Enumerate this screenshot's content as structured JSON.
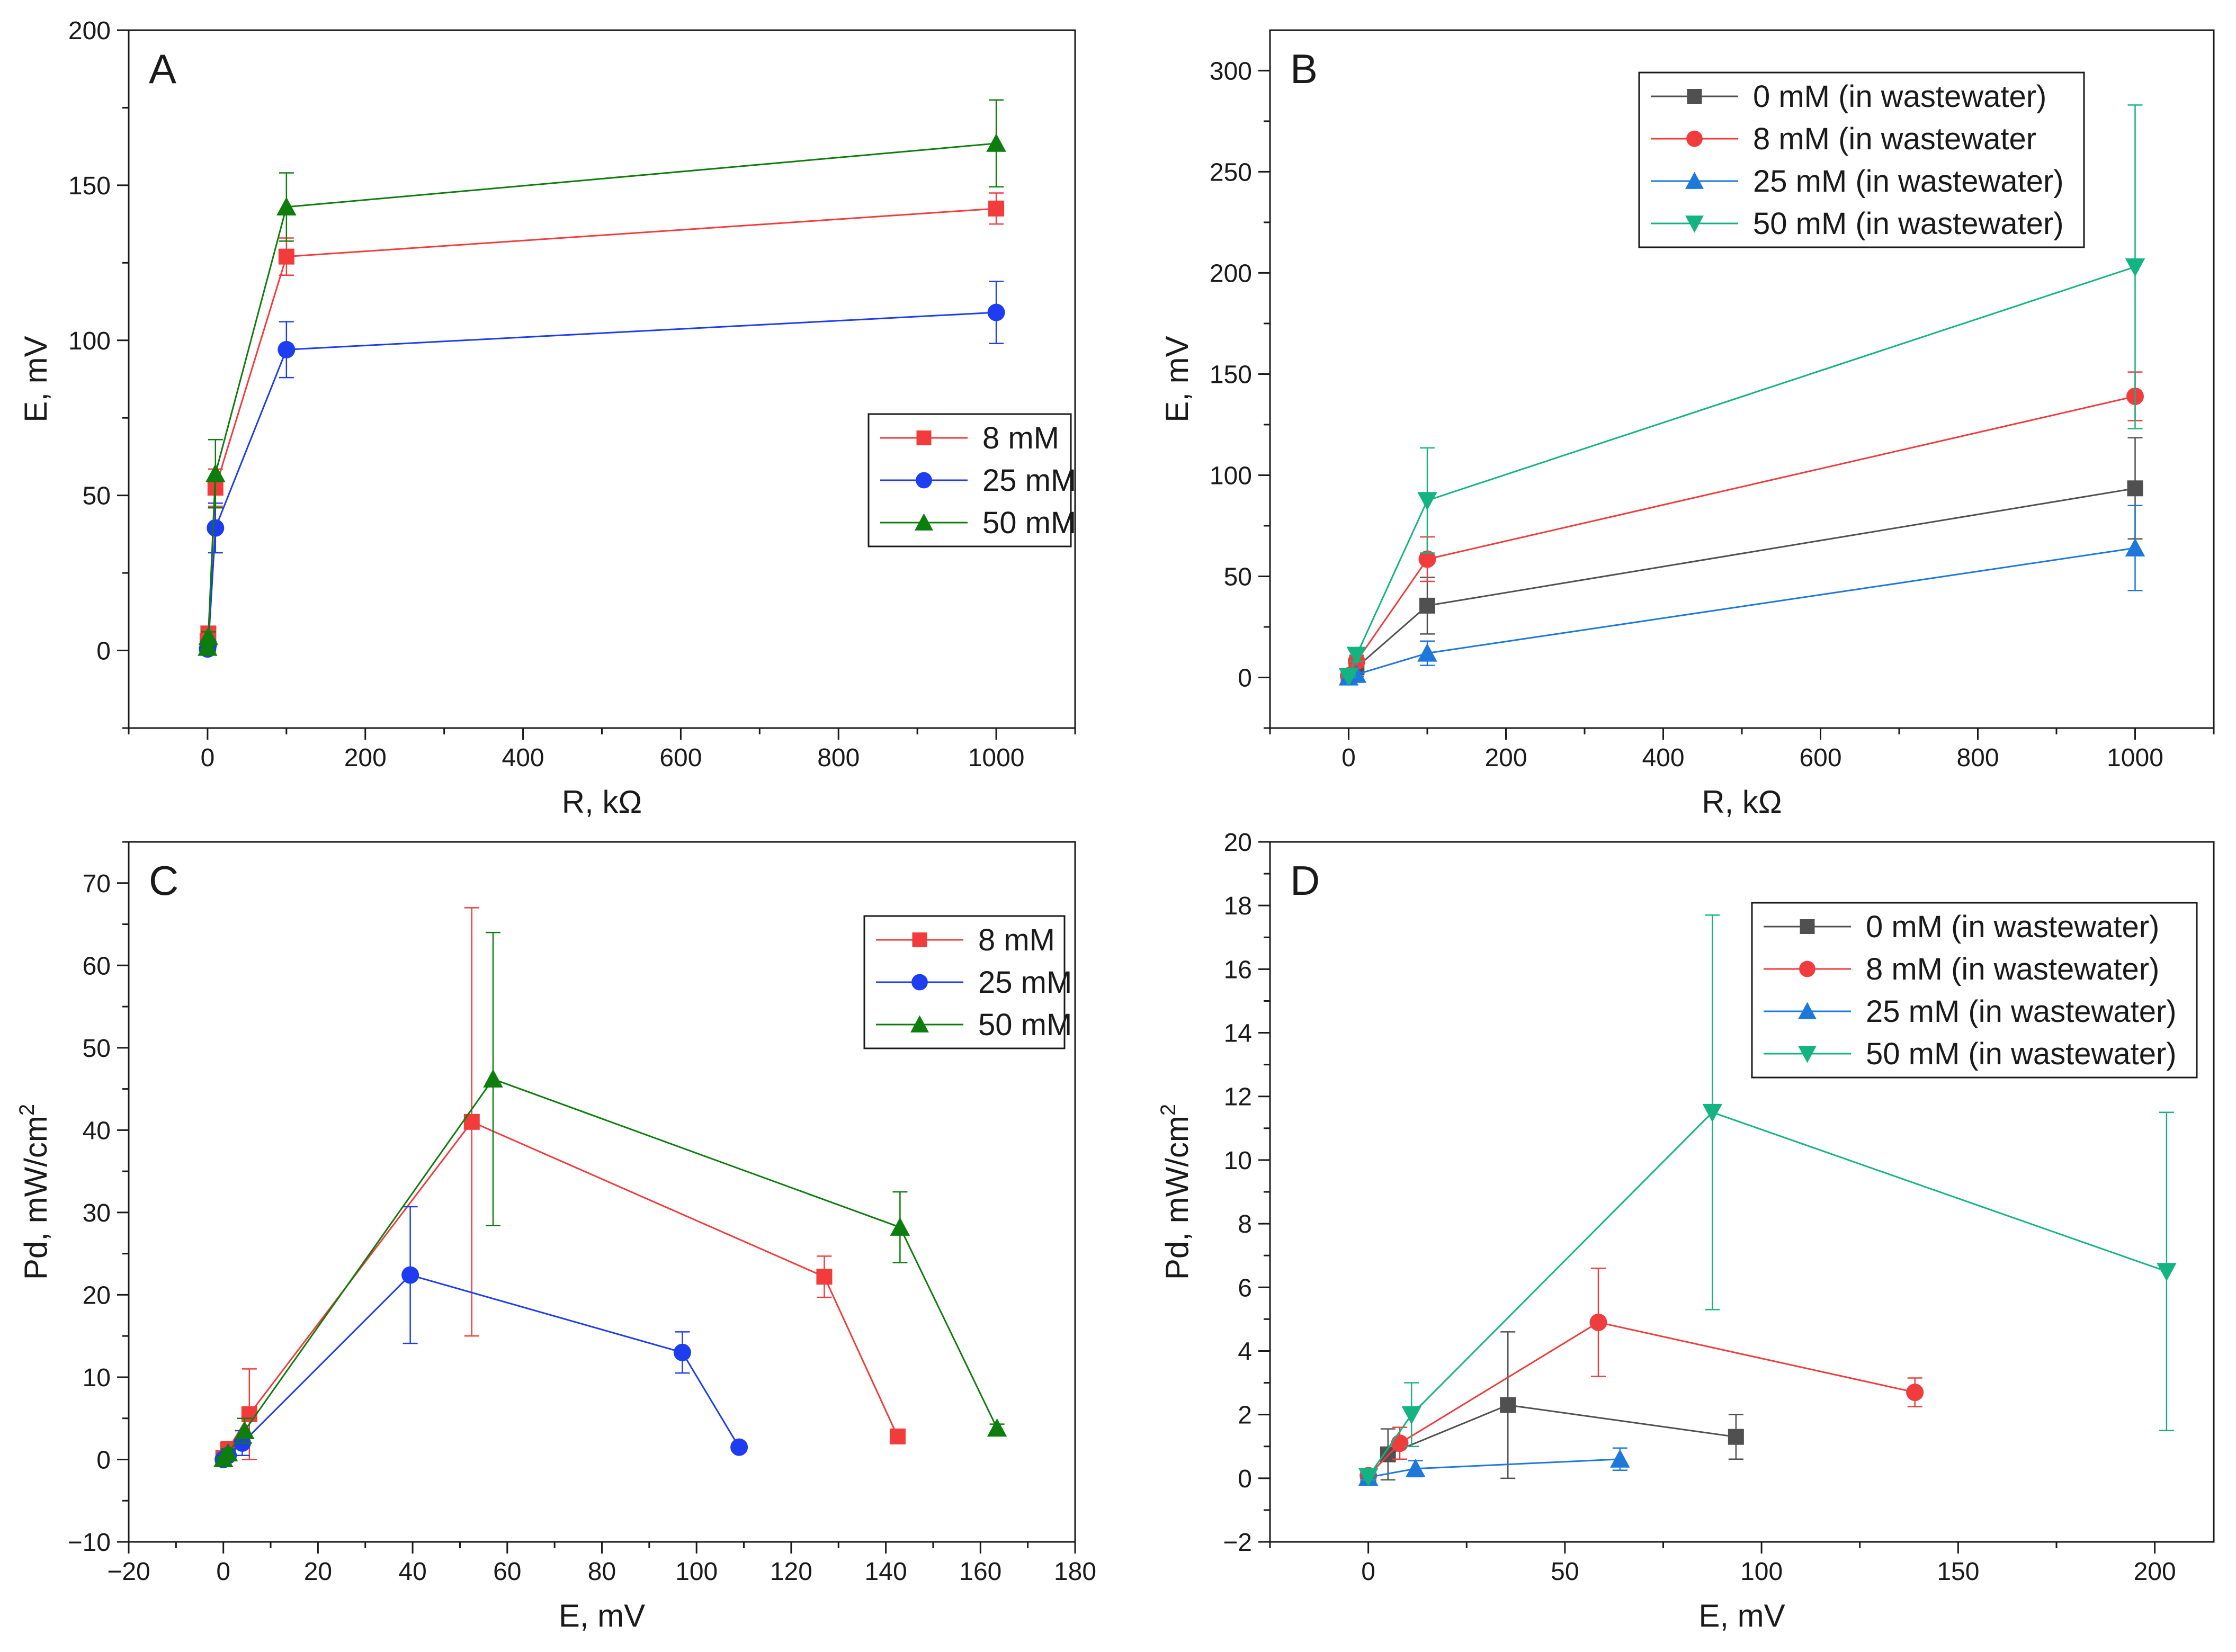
{
  "chart_data": [
    {
      "type": "line",
      "panel": "A",
      "xlabel": "R, kΩ",
      "ylabel": "E, mV",
      "xlim": [
        -100,
        1100
      ],
      "ylim": [
        -25,
        200
      ],
      "xticks": [
        0,
        200,
        400,
        600,
        800,
        1000
      ],
      "yticks": [
        0,
        50,
        100,
        150,
        200
      ],
      "legend": "lower-right",
      "series": [
        {
          "name": "8 mM",
          "color": "#f23c3c",
          "marker": "square",
          "x": [
            0,
            1,
            10,
            100,
            1000
          ],
          "y": [
            3,
            5.5,
            52.5,
            127,
            142.5
          ],
          "err": [
            1,
            1.5,
            6,
            6,
            5
          ]
        },
        {
          "name": "25 mM",
          "color": "#1e3cf0",
          "marker": "circle",
          "x": [
            0,
            1,
            10,
            100,
            1000
          ],
          "y": [
            0.5,
            2,
            39.5,
            97,
            109
          ],
          "err": [
            0.5,
            1,
            8,
            9,
            10
          ]
        },
        {
          "name": "50 mM",
          "color": "#0d7d0d",
          "marker": "triangle-up",
          "x": [
            0,
            1,
            10,
            100,
            1000
          ],
          "y": [
            1,
            4.5,
            57,
            143,
            163.5
          ],
          "err": [
            0.5,
            1.5,
            11,
            11,
            14
          ]
        }
      ]
    },
    {
      "type": "line",
      "panel": "B",
      "xlabel": "R, kΩ",
      "ylabel": "E, mV",
      "xlim": [
        -100,
        1100
      ],
      "ylim": [
        -25,
        320
      ],
      "xticks": [
        0,
        200,
        400,
        600,
        800,
        1000
      ],
      "yticks": [
        0,
        50,
        100,
        150,
        200,
        250,
        300
      ],
      "legend": "top-right",
      "series": [
        {
          "name": "0 mM (in wastewater)",
          "color": "#505050",
          "marker": "square",
          "x": [
            0,
            10,
            100,
            1000
          ],
          "y": [
            0.5,
            5,
            35.5,
            93.5
          ],
          "err": [
            0.5,
            2,
            14,
            25
          ]
        },
        {
          "name": "8 mM (in wastewater",
          "color": "#f03c3c",
          "marker": "circle",
          "x": [
            0,
            10,
            100,
            1000
          ],
          "y": [
            0.8,
            8,
            58.5,
            139
          ],
          "err": [
            0.5,
            3,
            11,
            12
          ]
        },
        {
          "name": "25 mM (in wastewater)",
          "color": "#1e78dc",
          "marker": "triangle-up",
          "x": [
            0,
            10,
            100,
            1000
          ],
          "y": [
            0.2,
            1.5,
            12,
            64
          ],
          "err": [
            0.2,
            1,
            6,
            21
          ]
        },
        {
          "name": "50 mM (in wastewater)",
          "color": "#14b482",
          "marker": "triangle-down",
          "x": [
            0,
            10,
            100,
            1000
          ],
          "y": [
            0.5,
            11,
            87.5,
            203
          ],
          "err": [
            0.5,
            3,
            26,
            80
          ]
        }
      ]
    },
    {
      "type": "line",
      "panel": "C",
      "xlabel": "E, mV",
      "ylabel": "Pd, mW/cm",
      "ylabel_sup": "2",
      "xlim": [
        -20,
        180
      ],
      "ylim": [
        -10,
        75
      ],
      "xticks": [
        -20,
        0,
        20,
        40,
        60,
        80,
        100,
        120,
        140,
        160,
        180
      ],
      "yticks": [
        -10,
        0,
        10,
        20,
        30,
        40,
        50,
        60,
        70
      ],
      "legend": "top-right",
      "series": [
        {
          "name": "8 mM",
          "color": "#f23c3c",
          "marker": "square",
          "x": [
            0,
            1,
            5.5,
            52.5,
            127,
            142.5
          ],
          "y": [
            0.2,
            1.2,
            5.5,
            41,
            22.2,
            2.8
          ],
          "err": [
            0.3,
            1,
            5.5,
            26,
            2.5,
            0.5
          ]
        },
        {
          "name": "25 mM",
          "color": "#1e3cf0",
          "marker": "circle",
          "x": [
            0,
            1,
            4,
            39.5,
            97,
            109
          ],
          "y": [
            0,
            0.5,
            2,
            22.4,
            13,
            1.5
          ],
          "err": [
            0.2,
            0.5,
            1.5,
            8.3,
            2.5,
            0.5
          ]
        },
        {
          "name": "50 mM",
          "color": "#0d7d0d",
          "marker": "triangle-up",
          "x": [
            0,
            1,
            4.5,
            57,
            143,
            163.5
          ],
          "y": [
            0.1,
            0.8,
            3.5,
            46.2,
            28.2,
            3.8
          ],
          "err": [
            0.2,
            0.5,
            1.5,
            17.8,
            4.3,
            0.5
          ]
        }
      ]
    },
    {
      "type": "line",
      "panel": "D",
      "xlabel": "E, mV",
      "ylabel": "Pd, mW/cm",
      "ylabel_sup": "2",
      "xlim": [
        -25,
        215
      ],
      "ylim": [
        -2,
        20
      ],
      "xticks": [
        0,
        50,
        100,
        150,
        200
      ],
      "yticks": [
        -2,
        0,
        2,
        4,
        6,
        8,
        10,
        12,
        14,
        16,
        18,
        20
      ],
      "legend": "top-right",
      "series": [
        {
          "name": "0 mM (in wastewater)",
          "color": "#505050",
          "marker": "square",
          "x": [
            0,
            5,
            35.5,
            93.5
          ],
          "y": [
            0.05,
            0.75,
            2.3,
            1.3
          ],
          "err": [
            0.1,
            0.8,
            2.3,
            0.7
          ]
        },
        {
          "name": "8 mM (in wastewater)",
          "color": "#f03c3c",
          "marker": "circle",
          "x": [
            0,
            8,
            58.5,
            139
          ],
          "y": [
            0.08,
            1.1,
            4.9,
            2.7
          ],
          "err": [
            0.1,
            0.5,
            1.7,
            0.45
          ]
        },
        {
          "name": "25 mM (in wastewater)",
          "color": "#1e78dc",
          "marker": "triangle-up",
          "x": [
            0,
            12,
            64
          ],
          "y": [
            0.03,
            0.3,
            0.6
          ],
          "err": [
            0.05,
            0.25,
            0.35
          ]
        },
        {
          "name": "50 mM (in wastewater)",
          "color": "#14b482",
          "marker": "triangle-down",
          "x": [
            0,
            11,
            87.5,
            203
          ],
          "y": [
            0.05,
            2,
            11.5,
            6.5
          ],
          "err": [
            0.1,
            1,
            6.2,
            5
          ]
        }
      ]
    }
  ]
}
